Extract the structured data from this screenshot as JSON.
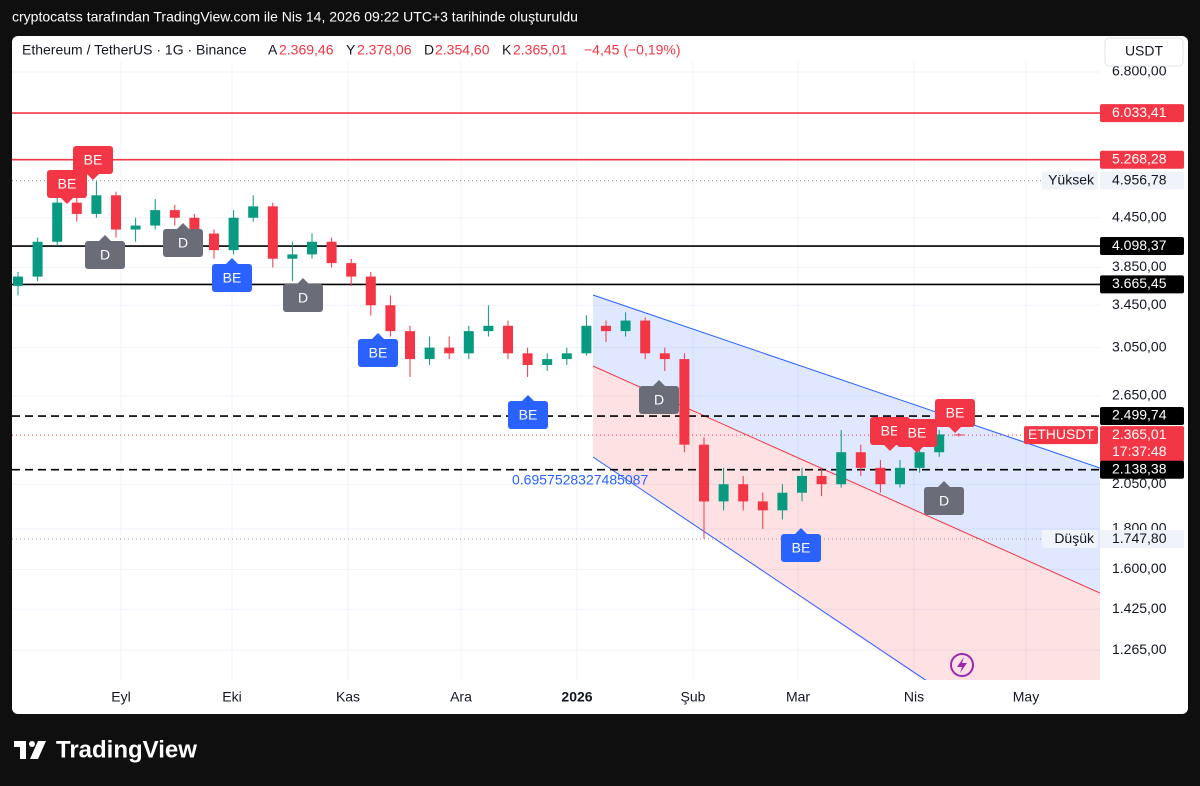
{
  "header": {
    "caption": "cryptocatss tarafından TradingView.com ile Nis 14, 2026 09:22 UTC+3 tarihinde oluşturuldu"
  },
  "chart_data": {
    "type": "candlestick",
    "title": "Ethereum / TetherUS · 1G · Binance",
    "ohlc_keys": [
      "A",
      "Y",
      "D",
      "K"
    ],
    "last_labels": [
      "2.369,46",
      "2.378,06",
      "2.354,60",
      "2.365,01"
    ],
    "change": "−4,45 (−0,19%)",
    "currency": "USDT",
    "colors": {
      "up": "#089981",
      "down": "#f23645"
    },
    "log_scale": true,
    "grid": true,
    "ylim": [
      1160,
      7000
    ],
    "yticks": [
      {
        "value": 6800,
        "label": "6.800,00"
      },
      {
        "value": 4450,
        "label": "4.450,00"
      },
      {
        "value": 3850,
        "label": "3.850,00"
      },
      {
        "value": 3450,
        "label": "3.450,00"
      },
      {
        "value": 3050,
        "label": "3.050,00"
      },
      {
        "value": 2650,
        "label": "2.650,00"
      },
      {
        "value": 2050,
        "label": "2.050,00"
      },
      {
        "value": 1800,
        "label": "1.800,00"
      },
      {
        "value": 1600,
        "label": "1.600,00"
      },
      {
        "value": 1425,
        "label": "1.425,00"
      },
      {
        "value": 1265,
        "label": "1.265,00"
      }
    ],
    "months": [
      "Eyl",
      "Eki",
      "Kas",
      "Ara",
      "2026",
      "Şub",
      "Mar",
      "Nis",
      "May"
    ],
    "open": [
      3650,
      3750,
      4150,
      4650,
      4500,
      4750,
      4300,
      4350,
      4550,
      4450,
      4250,
      4050,
      4450,
      4600,
      3950,
      4000,
      4150,
      3900,
      3750,
      3450,
      3200,
      2950,
      3050,
      3000,
      3200,
      3250,
      3000,
      2900,
      2950,
      3000,
      3250,
      3200,
      3300,
      3000,
      2950,
      2300,
      1950,
      2050,
      1950,
      1900,
      2000,
      2100,
      2050,
      2250,
      2150,
      2050,
      2150,
      2250,
      2369.46
    ],
    "high": [
      3800,
      4200,
      4750,
      4780,
      4950,
      4800,
      4450,
      4700,
      4620,
      4500,
      4300,
      4550,
      4750,
      4650,
      4150,
      4250,
      4200,
      3950,
      3800,
      3550,
      3250,
      3150,
      3150,
      3250,
      3450,
      3300,
      3050,
      3000,
      3050,
      3350,
      3300,
      3380,
      3330,
      3050,
      3000,
      2350,
      2150,
      2100,
      2000,
      2050,
      2150,
      2150,
      2400,
      2300,
      2200,
      2200,
      2300,
      2400,
      2378.06
    ],
    "low": [
      3550,
      3700,
      4100,
      4400,
      4450,
      4200,
      4150,
      4300,
      4350,
      4150,
      3950,
      4000,
      4400,
      3850,
      3700,
      3950,
      3850,
      3650,
      3350,
      3150,
      2800,
      2900,
      2950,
      2950,
      3150,
      2950,
      2800,
      2850,
      2900,
      2980,
      3100,
      3150,
      2950,
      2850,
      2250,
      1750,
      1900,
      1900,
      1800,
      1850,
      1950,
      1980,
      2030,
      2100,
      2000,
      2030,
      2120,
      2220,
      2354.6
    ],
    "close": [
      3750,
      4150,
      4650,
      4500,
      4750,
      4300,
      4350,
      4550,
      4450,
      4250,
      4050,
      4450,
      4600,
      3950,
      4000,
      4150,
      3900,
      3750,
      3450,
      3200,
      2950,
      3050,
      3000,
      3200,
      3250,
      3000,
      2900,
      2950,
      3000,
      3250,
      3200,
      3300,
      3000,
      2950,
      2300,
      1950,
      2050,
      1950,
      1900,
      2000,
      2100,
      2050,
      2250,
      2150,
      2050,
      2150,
      2250,
      2369.46,
      2365.01
    ],
    "price_lines": [
      {
        "value": 6033.41,
        "label": "6.033,41",
        "color": "#f23645",
        "style": "solid"
      },
      {
        "value": 5268.28,
        "label": "5.268,28",
        "color": "#f23645",
        "style": "solid"
      },
      {
        "value": 4956.78,
        "label": "4.956,78",
        "name": "Yüksek",
        "color": "#9598a1",
        "style": "dotted"
      },
      {
        "value": 4098.37,
        "label": "4.098,37",
        "color": "#000000",
        "style": "solid"
      },
      {
        "value": 3665.45,
        "label": "3.665,45",
        "color": "#000000",
        "style": "solid"
      },
      {
        "value": 2499.74,
        "label": "2.499,74",
        "color": "#000000",
        "style": "dashed"
      },
      {
        "value": 2365.01,
        "label": "2.365,01",
        "name": "ETHUSDT",
        "countdown": "17:37:48",
        "color": "#f23645",
        "style": "dotted"
      },
      {
        "value": 2138.38,
        "label": "2.138,38",
        "color": "#000000",
        "style": "dashed"
      },
      {
        "value": 1747.8,
        "label": "1.747,80",
        "name": "Düşük",
        "color": "#9598a1",
        "style": "dotted"
      }
    ],
    "channel": {
      "label": "0.6957528327485087"
    },
    "markers": [
      {
        "label": "BE",
        "color": "#f23645"
      },
      {
        "label": "BE",
        "color": "#f23645"
      },
      {
        "label": "D",
        "color": "#6a6d78"
      },
      {
        "label": "D",
        "color": "#6a6d78"
      },
      {
        "label": "BE",
        "color": "#2962ff"
      },
      {
        "label": "D",
        "color": "#6a6d78"
      },
      {
        "label": "BE",
        "color": "#2962ff"
      },
      {
        "label": "BE",
        "color": "#2962ff"
      },
      {
        "label": "D",
        "color": "#6a6d78"
      },
      {
        "label": "BE",
        "color": "#2962ff"
      },
      {
        "label": "BE",
        "color": "#f23645"
      },
      {
        "label": "BE",
        "color": "#f23645"
      },
      {
        "label": "BE",
        "color": "#f23645"
      },
      {
        "label": "D",
        "color": "#6a6d78"
      }
    ]
  },
  "footer": {
    "brand": "TradingView"
  }
}
